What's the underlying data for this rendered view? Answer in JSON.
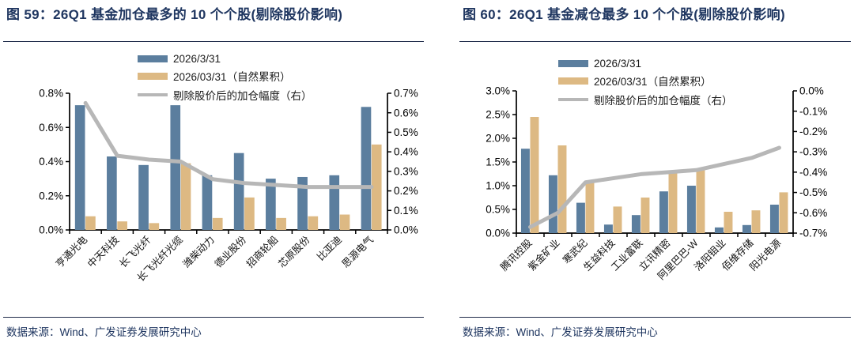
{
  "colors": {
    "bar_blue": "#5b7e9e",
    "bar_tan": "#ddb983",
    "line_gray": "#b7b7b7",
    "title_navy": "#1f3660",
    "axis_black": "#000000"
  },
  "chart_data": [
    {
      "type": "bar",
      "title": "图 59：26Q1 基金加仓最多的 10 个个股(剔除股价影响)",
      "source": "数据来源：Wind、广发证券发展研究中心",
      "legend_position": "top-center",
      "grid": false,
      "categories": [
        "亨通光电",
        "中天科技",
        "长飞光纤",
        "长飞光纤光缆",
        "潍柴动力",
        "德业股份",
        "招商轮船",
        "芯原股份",
        "比亚迪",
        "思源电气"
      ],
      "series": [
        {
          "name": "2026/3/31",
          "kind": "bar",
          "axis": "left",
          "color": "#5b7e9e",
          "values": [
            0.73,
            0.43,
            0.38,
            0.73,
            0.32,
            0.45,
            0.3,
            0.31,
            0.32,
            0.72
          ]
        },
        {
          "name": "2026/03/31（自然累积）",
          "kind": "bar",
          "axis": "left",
          "color": "#ddb983",
          "values": [
            0.08,
            0.05,
            0.04,
            0.39,
            0.07,
            0.19,
            0.07,
            0.08,
            0.09,
            0.5
          ]
        },
        {
          "name": "剔除股价后的加仓幅度（右）",
          "kind": "line",
          "axis": "right",
          "color": "#b7b7b7",
          "values": [
            0.65,
            0.38,
            0.36,
            0.35,
            0.26,
            0.24,
            0.23,
            0.22,
            0.22,
            0.22
          ]
        }
      ],
      "left_axis": {
        "min": 0,
        "max": 0.8,
        "step": 0.2,
        "unit": "%"
      },
      "right_axis": {
        "min": 0,
        "max": 0.7,
        "step": 0.1,
        "unit": "%"
      }
    },
    {
      "type": "bar",
      "title": "图 60：26Q1 基金减仓最多 10 个个股(剔除股价影响)",
      "source": "数据来源：Wind、广发证券发展研究中心",
      "legend_position": "top-center",
      "grid": false,
      "categories": [
        "腾讯控股",
        "紫金矿业",
        "寒武纪",
        "生益科技",
        "工业富联",
        "立讯精密",
        "阿里巴巴-W",
        "洛阳钼业",
        "佰维存储",
        "阳光电源"
      ],
      "series": [
        {
          "name": "2026/3/31",
          "kind": "bar",
          "axis": "left",
          "color": "#5b7e9e",
          "values": [
            1.78,
            1.22,
            0.64,
            0.18,
            0.38,
            0.88,
            1.0,
            0.12,
            0.17,
            0.6
          ]
        },
        {
          "name": "2026/03/31（自然累积）",
          "kind": "bar",
          "axis": "left",
          "color": "#ddb983",
          "values": [
            2.45,
            1.85,
            1.08,
            0.56,
            0.75,
            1.26,
            1.34,
            0.45,
            0.48,
            0.86
          ]
        },
        {
          "name": "剔除股价后的加仓幅度（右）",
          "kind": "line",
          "axis": "right",
          "color": "#b7b7b7",
          "values": [
            -0.67,
            -0.6,
            -0.45,
            -0.43,
            -0.41,
            -0.4,
            -0.39,
            -0.36,
            -0.33,
            -0.28
          ]
        }
      ],
      "left_axis": {
        "min": 0,
        "max": 3.0,
        "step": 0.5,
        "unit": "%"
      },
      "right_axis": {
        "min": -0.7,
        "max": 0,
        "step": 0.1,
        "unit": "%"
      }
    }
  ]
}
